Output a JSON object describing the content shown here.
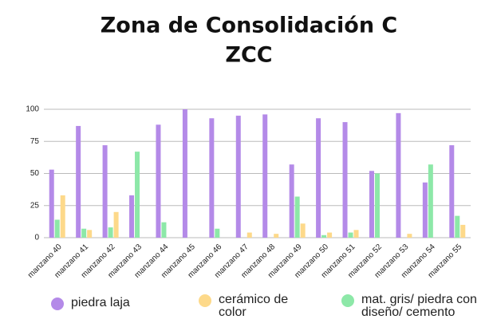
{
  "chart_data": {
    "type": "bar",
    "title": "Zona de Consolidación C",
    "subtitle": "ZCC",
    "categories": [
      "manzano 40",
      "manzano 41",
      "manzano 42",
      "manzano 43",
      "manzano 44",
      "manzano 45",
      "manzano 46",
      "manzano 47",
      "manzano 48",
      "manzano 49",
      "manzano 50",
      "manzano 51",
      "manzano 52",
      "manzano 53",
      "manzano 54",
      "manzano 55"
    ],
    "series": [
      {
        "name": "piedra laja",
        "color": "#b48ae8",
        "values": [
          53,
          87,
          72,
          33,
          88,
          100,
          93,
          95,
          96,
          57,
          93,
          90,
          52,
          97,
          43,
          72
        ]
      },
      {
        "name": "cerámico de color",
        "color": "#fdd98a",
        "values": [
          33,
          6,
          20,
          0,
          0,
          0,
          0,
          4,
          3,
          11,
          4,
          6,
          0,
          3,
          0,
          10
        ]
      },
      {
        "name": "mat. gris/ piedra con diseño/ cemento",
        "color": "#8de8a8",
        "values": [
          14,
          7,
          8,
          67,
          12,
          0,
          7,
          0,
          0,
          32,
          2,
          4,
          50,
          0,
          57,
          17
        ]
      }
    ],
    "ylim": [
      0,
      100
    ],
    "yticks": [
      0,
      25,
      50,
      75,
      100
    ],
    "grid": true
  }
}
